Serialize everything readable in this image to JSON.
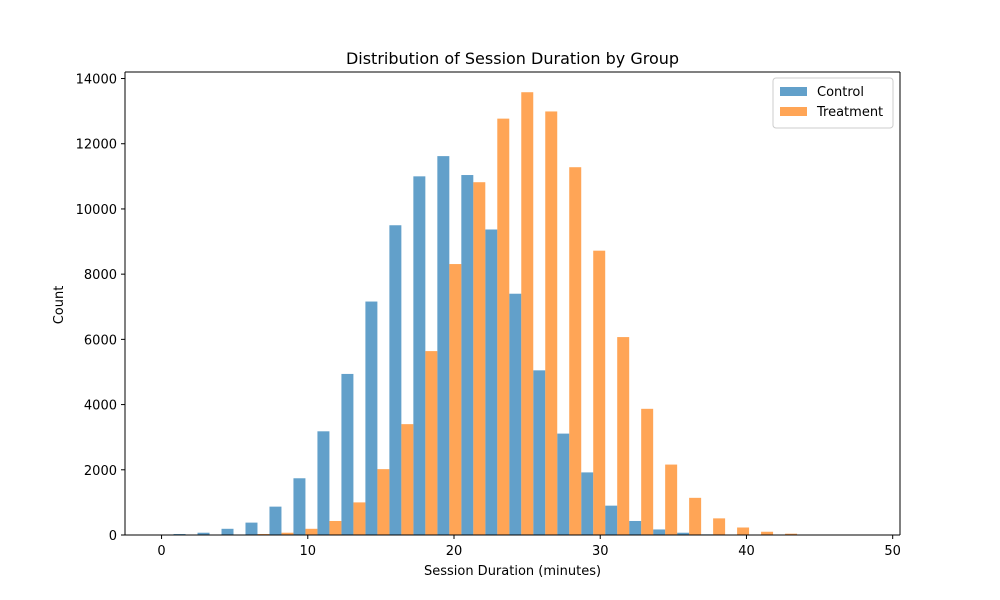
{
  "chart_data": {
    "type": "bar",
    "title": "Distribution of Session Duration by Group",
    "xlabel": "Session Duration (minutes)",
    "ylabel": "Count",
    "xlim": [
      -2.5,
      50.5
    ],
    "ylim": [
      0,
      14200
    ],
    "xticks": [
      0,
      10,
      20,
      30,
      40,
      50
    ],
    "yticks": [
      0,
      2000,
      4000,
      6000,
      8000,
      10000,
      12000,
      14000
    ],
    "grid": false,
    "legend_position": "top-right",
    "bin_centers": [
      1.64,
      3.28,
      4.92,
      6.56,
      8.2,
      9.84,
      11.48,
      13.12,
      14.76,
      16.4,
      18.04,
      19.68,
      21.32,
      22.96,
      24.6,
      26.24,
      27.88,
      29.52,
      31.16,
      32.8,
      34.44,
      36.08,
      37.72,
      39.36,
      41.0,
      42.64,
      44.28,
      45.92,
      47.56
    ],
    "series": [
      {
        "name": "Control",
        "color": "#1f77b4",
        "values": [
          30,
          70,
          190,
          380,
          870,
          1740,
          3180,
          4940,
          7160,
          9500,
          11000,
          11620,
          11040,
          9370,
          7400,
          5050,
          3110,
          1920,
          900,
          430,
          170,
          70,
          20,
          5,
          0,
          0,
          0,
          0,
          0
        ]
      },
      {
        "name": "Treatment",
        "color": "#ff7f0e",
        "values": [
          0,
          0,
          0,
          30,
          70,
          190,
          430,
          1000,
          2020,
          3400,
          5640,
          8310,
          10820,
          12770,
          13580,
          12990,
          11280,
          8720,
          6070,
          3870,
          2160,
          1140,
          510,
          230,
          100,
          40,
          10,
          0,
          0
        ]
      }
    ]
  }
}
